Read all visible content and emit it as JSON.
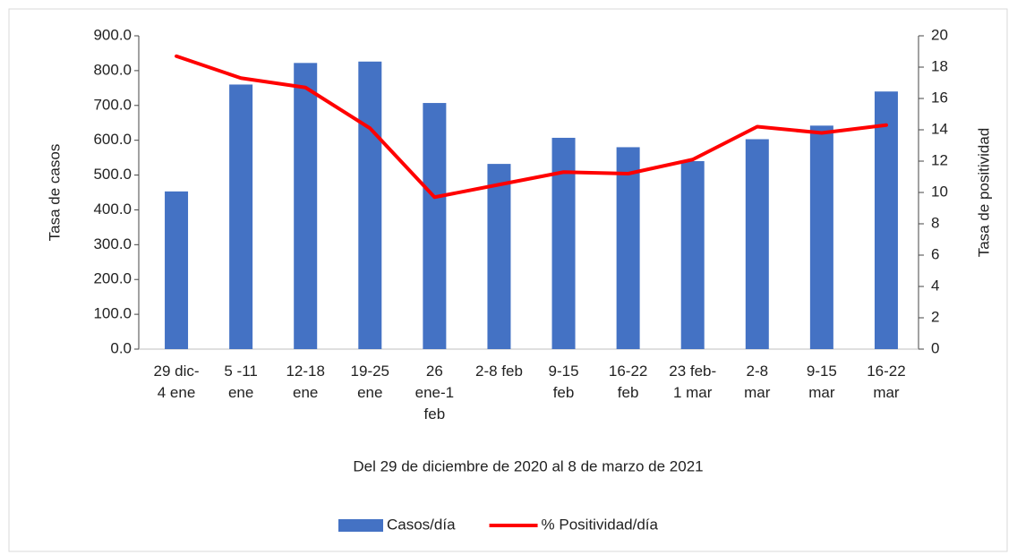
{
  "chart_data": {
    "type": "bar",
    "x_label": "Del 29 de diciembre de 2020 al 8 de marzo de 2021",
    "y_label": "Tasa de casos",
    "y2_label": "Tasa de positividad",
    "categories": [
      "29 dic-\n4 ene",
      "5 -11\nene",
      "12-18\nene",
      "19-25\nene",
      "26\nene-1\nfeb",
      "2-8 feb",
      "9-15\nfeb",
      "16-22\nfeb",
      "23 feb-\n1 mar",
      "2-8\nmar",
      "9-15\nmar",
      "16-22\nmar"
    ],
    "series": [
      {
        "name": "Casos/día",
        "type": "bar",
        "color": "#4472c4",
        "axis": "y",
        "values": [
          453,
          760,
          822,
          826,
          707,
          532,
          607,
          580,
          540,
          603,
          642,
          740
        ]
      },
      {
        "name": "% Positividad/día",
        "type": "line",
        "color": "#ff0000",
        "axis": "y2",
        "values": [
          18.7,
          17.3,
          16.7,
          14.1,
          9.7,
          10.5,
          11.3,
          11.2,
          12.1,
          14.2,
          13.8,
          14.3
        ]
      }
    ],
    "ylim": [
      0,
      900
    ],
    "yticks": [
      {
        "value": 0,
        "label": "0.0"
      },
      {
        "value": 100,
        "label": "100.0"
      },
      {
        "value": 200,
        "label": "200.0"
      },
      {
        "value": 300,
        "label": "300.0"
      },
      {
        "value": 400,
        "label": "400.0"
      },
      {
        "value": 500,
        "label": "500.0"
      },
      {
        "value": 600,
        "label": "600.0"
      },
      {
        "value": 700,
        "label": "700.0"
      },
      {
        "value": 800,
        "label": "800.0"
      },
      {
        "value": 900,
        "label": "900.0"
      }
    ],
    "y2lim": [
      0,
      20
    ],
    "y2ticks": [
      0,
      2,
      4,
      6,
      8,
      10,
      12,
      14,
      16,
      18,
      20
    ],
    "legend": "bottom"
  }
}
